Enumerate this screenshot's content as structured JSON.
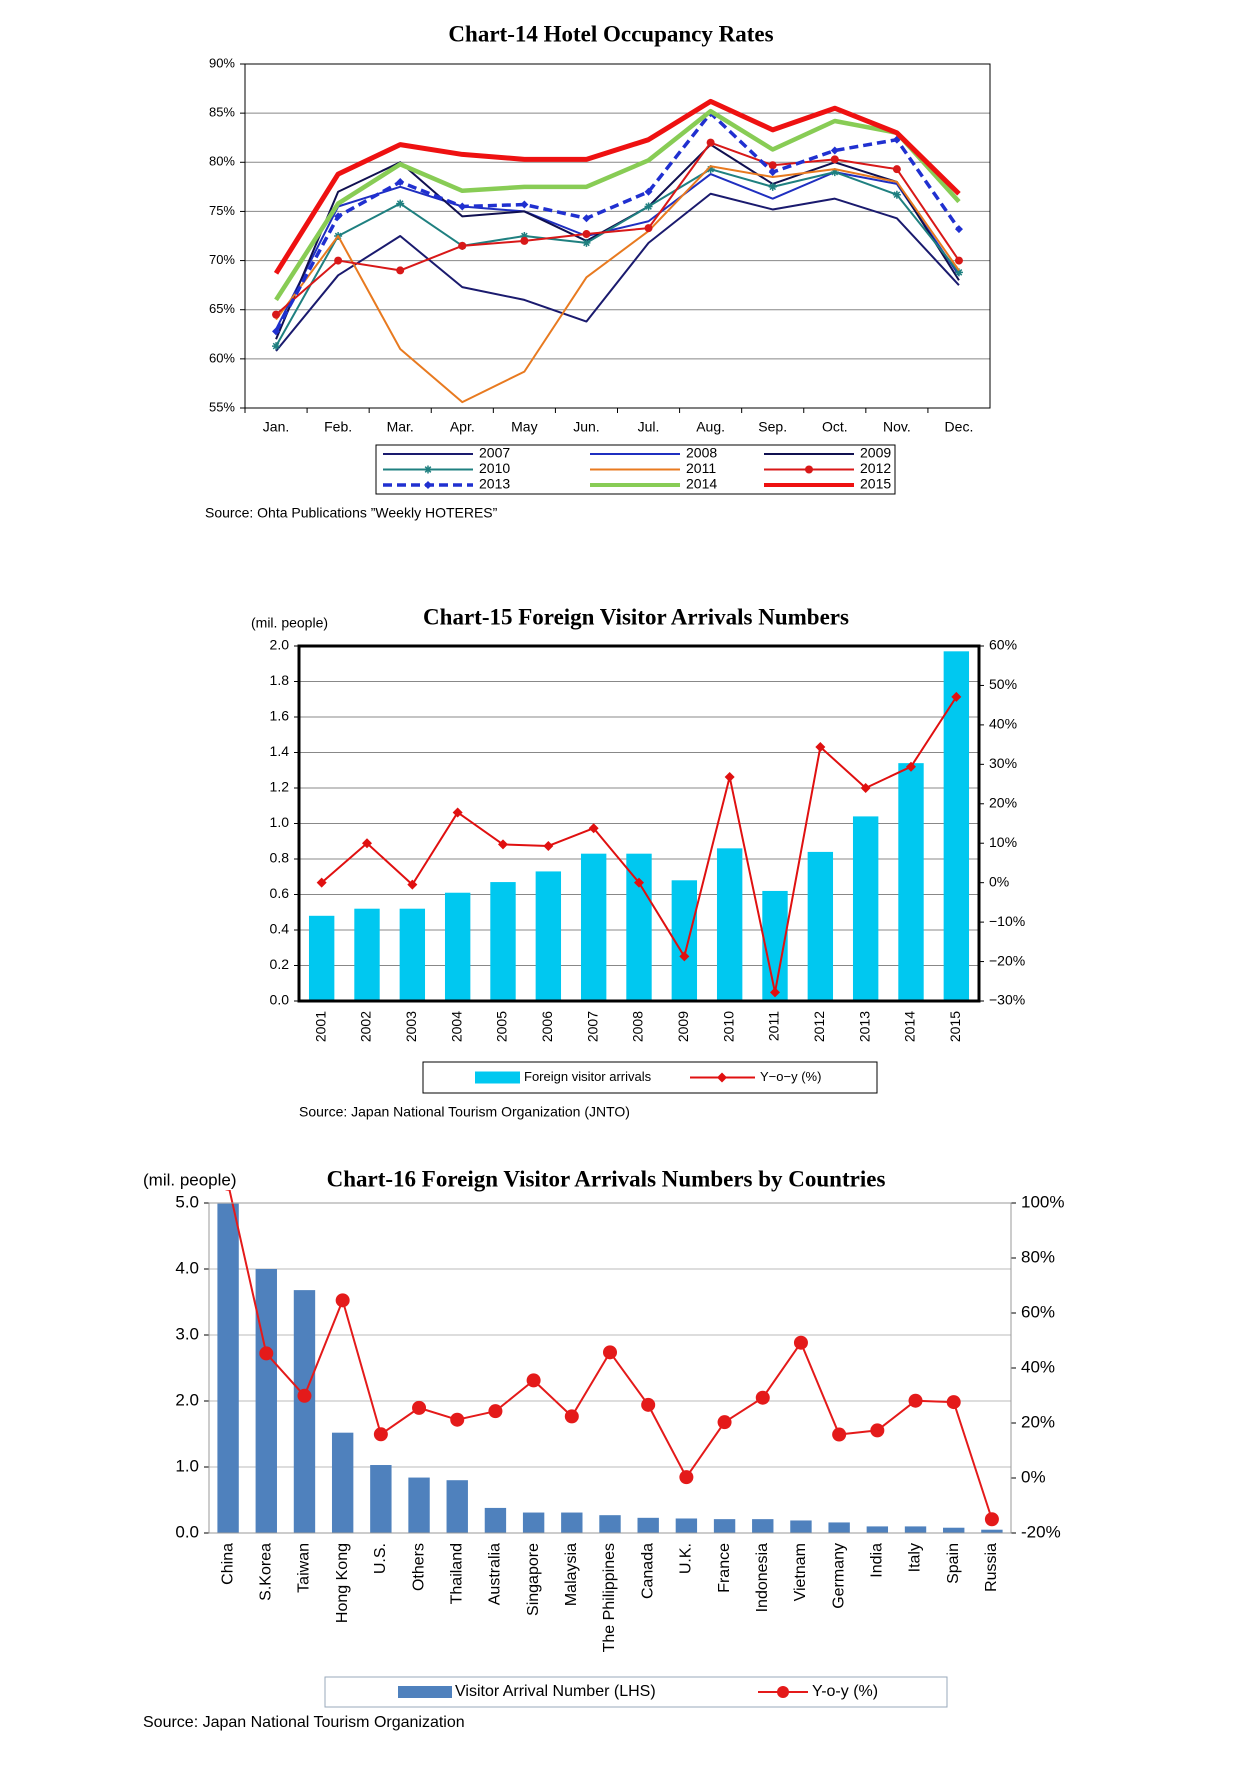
{
  "chart_data": [
    {
      "type": "line",
      "title": "Chart-14 Hotel Occupancy Rates",
      "categories": [
        "Jan.",
        "Feb.",
        "Mar.",
        "Apr.",
        "May",
        "Jun.",
        "Jul.",
        "Aug.",
        "Sep.",
        "Oct.",
        "Nov.",
        "Dec."
      ],
      "series": [
        {
          "name": "2007",
          "color": "#1a1a6e",
          "width": 2,
          "values": [
            60.8,
            68.5,
            72.5,
            67.3,
            66,
            63.8,
            71.8,
            76.8,
            75.2,
            76.3,
            74.3,
            67.5
          ]
        },
        {
          "name": "2008",
          "color": "#1f2fc0",
          "width": 2,
          "values": [
            63,
            75.5,
            77.5,
            75.5,
            75,
            72.5,
            74,
            78.8,
            76.3,
            79,
            77.8,
            68.5
          ]
        },
        {
          "name": "2009",
          "color": "#101050",
          "width": 2,
          "values": [
            62,
            77,
            80,
            74.5,
            75,
            72,
            75.5,
            81.8,
            77.8,
            80,
            78,
            68
          ]
        },
        {
          "name": "2010",
          "color": "#1f8080",
          "width": 2,
          "marker": "star",
          "values": [
            61.3,
            72.5,
            75.8,
            71.5,
            72.5,
            71.8,
            75.5,
            79.3,
            77.5,
            79,
            76.7,
            68.8
          ]
        },
        {
          "name": "2011",
          "color": "#e87a20",
          "width": 2,
          "values": [
            64,
            72.5,
            61,
            55.6,
            58.7,
            68.3,
            73,
            79.6,
            78.5,
            79.3,
            78,
            69
          ]
        },
        {
          "name": "2012",
          "color": "#d81818",
          "width": 2,
          "marker": "circle",
          "values": [
            64.5,
            70,
            69,
            71.5,
            72,
            72.7,
            73.3,
            82,
            79.7,
            80.3,
            79.3,
            70
          ]
        },
        {
          "name": "2013",
          "color": "#2030d0",
          "width": 3.5,
          "dash": true,
          "marker": "diamond",
          "values": [
            62.8,
            74.5,
            78,
            75.5,
            75.7,
            74.3,
            77,
            85,
            79,
            81.2,
            82.3,
            73.2
          ]
        },
        {
          "name": "2014",
          "color": "#88cc55",
          "width": 4.5,
          "values": [
            66,
            75.8,
            79.8,
            77.1,
            77.5,
            77.5,
            80.2,
            85.2,
            81.3,
            84.2,
            83,
            76
          ]
        },
        {
          "name": "2015",
          "color": "#ee1111",
          "width": 5,
          "values": [
            68.7,
            78.8,
            81.8,
            80.8,
            80.3,
            80.3,
            82.3,
            86.2,
            83.3,
            85.5,
            83,
            76.8
          ]
        }
      ],
      "ylim": [
        55,
        90
      ],
      "yticks": [
        {
          "value": 55,
          "label": "55%"
        },
        {
          "value": 60,
          "label": "60%"
        },
        {
          "value": 65,
          "label": "65%"
        },
        {
          "value": 70,
          "label": "70%"
        },
        {
          "value": 75,
          "label": "75%"
        },
        {
          "value": 80,
          "label": "80%"
        },
        {
          "value": 85,
          "label": "85%"
        },
        {
          "value": 90,
          "label": "90%"
        }
      ],
      "grid": true,
      "source": "Source: Ohta Publications ”Weekly HOTERES”"
    },
    {
      "type": "bar",
      "title": "Chart-15 Foreign Visitor Arrivals Numbers",
      "y_label": "(mil. people)",
      "categories": [
        "2001",
        "2002",
        "2003",
        "2004",
        "2005",
        "2006",
        "2007",
        "2008",
        "2009",
        "2010",
        "2011",
        "2012",
        "2013",
        "2014",
        "2015"
      ],
      "series": [
        {
          "name": "Foreign visitor arrivals",
          "type": "bar",
          "color": "#00c8f0",
          "values": [
            0.48,
            0.52,
            0.52,
            0.61,
            0.67,
            0.73,
            0.83,
            0.83,
            0.68,
            0.86,
            0.62,
            0.84,
            1.04,
            1.34,
            1.97
          ]
        },
        {
          "name": "Y−o−y (%)",
          "type": "line",
          "axis": "y2",
          "color": "#e01010",
          "marker": "diamond",
          "values": [
            0,
            10,
            -0.5,
            17.8,
            9.7,
            9.3,
            13.8,
            0,
            -18.7,
            26.8,
            -27.8,
            34.4,
            24,
            29.4,
            47.1
          ]
        }
      ],
      "ylim": [
        0,
        2
      ],
      "yticks": [
        {
          "value": 0,
          "label": "0.0"
        },
        0.2,
        0.4,
        0.6,
        0.8,
        {
          "value": 1,
          "label": "1.0"
        },
        1.2,
        1.4,
        1.6,
        1.8,
        {
          "value": 2,
          "label": "2.0"
        }
      ],
      "y2lim": [
        -30,
        60
      ],
      "y2ticks": [
        {
          "value": -30,
          "label": "−30%"
        },
        {
          "value": -20,
          "label": "−20%"
        },
        {
          "value": -10,
          "label": "−10%"
        },
        {
          "value": 0,
          "label": "0%"
        },
        {
          "value": 10,
          "label": "10%"
        },
        {
          "value": 20,
          "label": "20%"
        },
        {
          "value": 30,
          "label": "30%"
        },
        {
          "value": 40,
          "label": "40%"
        },
        {
          "value": 50,
          "label": "50%"
        },
        {
          "value": 60,
          "label": "60%"
        }
      ],
      "grid": true,
      "source": "Source: Japan National Tourism Organization (JNTO)"
    },
    {
      "type": "bar",
      "title": "Chart-16 Foreign Visitor Arrivals Numbers by Countries",
      "y_label": "(mil. people)",
      "categories": [
        "China",
        "S.Korea",
        "Taiwan",
        "Hong Kong",
        "U.S.",
        "Others",
        "Thailand",
        "Australia",
        "Singapore",
        "Malaysia",
        "The Philippines",
        "Canada",
        "U.K.",
        "France",
        "Indonesia",
        "Vietnam",
        "Germany",
        "India",
        "Italy",
        "Spain",
        "Russia"
      ],
      "series": [
        {
          "name": "Visitor Arrival Number (LHS)",
          "type": "bar",
          "color": "#4f81bd",
          "values": [
            4.99,
            4.0,
            3.68,
            1.52,
            1.03,
            0.84,
            0.8,
            0.38,
            0.31,
            0.31,
            0.27,
            0.23,
            0.22,
            0.21,
            0.21,
            0.19,
            0.16,
            0.1,
            0.1,
            0.08,
            0.05
          ]
        },
        {
          "name": "Y-o-y (%)",
          "type": "line",
          "axis": "y2",
          "color": "#e41a1a",
          "marker": "circle",
          "values": [
            107,
            45.3,
            29.9,
            64.6,
            15.9,
            25.5,
            21.2,
            24.3,
            35.5,
            22.4,
            45.7,
            26.6,
            0.3,
            20.3,
            29.2,
            49.2,
            15.8,
            17.3,
            28.1,
            27.6,
            -15
          ]
        }
      ],
      "ylim": [
        0,
        5
      ],
      "yticks": [
        {
          "value": 0,
          "label": "0.0"
        },
        {
          "value": 1,
          "label": "1.0"
        },
        {
          "value": 2,
          "label": "2.0"
        },
        {
          "value": 3,
          "label": "3.0"
        },
        {
          "value": 4,
          "label": "4.0"
        },
        {
          "value": 5,
          "label": "5.0"
        }
      ],
      "y2lim": [
        -20,
        100
      ],
      "y2ticks": [
        {
          "value": -20,
          "label": "-20%"
        },
        {
          "value": 0,
          "label": "0%"
        },
        {
          "value": 20,
          "label": "20%"
        },
        {
          "value": 40,
          "label": "40%"
        },
        {
          "value": 60,
          "label": "60%"
        },
        {
          "value": 80,
          "label": "80%"
        },
        {
          "value": 100,
          "label": "100%"
        }
      ],
      "grid": true,
      "source": "Source: Japan National Tourism Organization"
    }
  ]
}
